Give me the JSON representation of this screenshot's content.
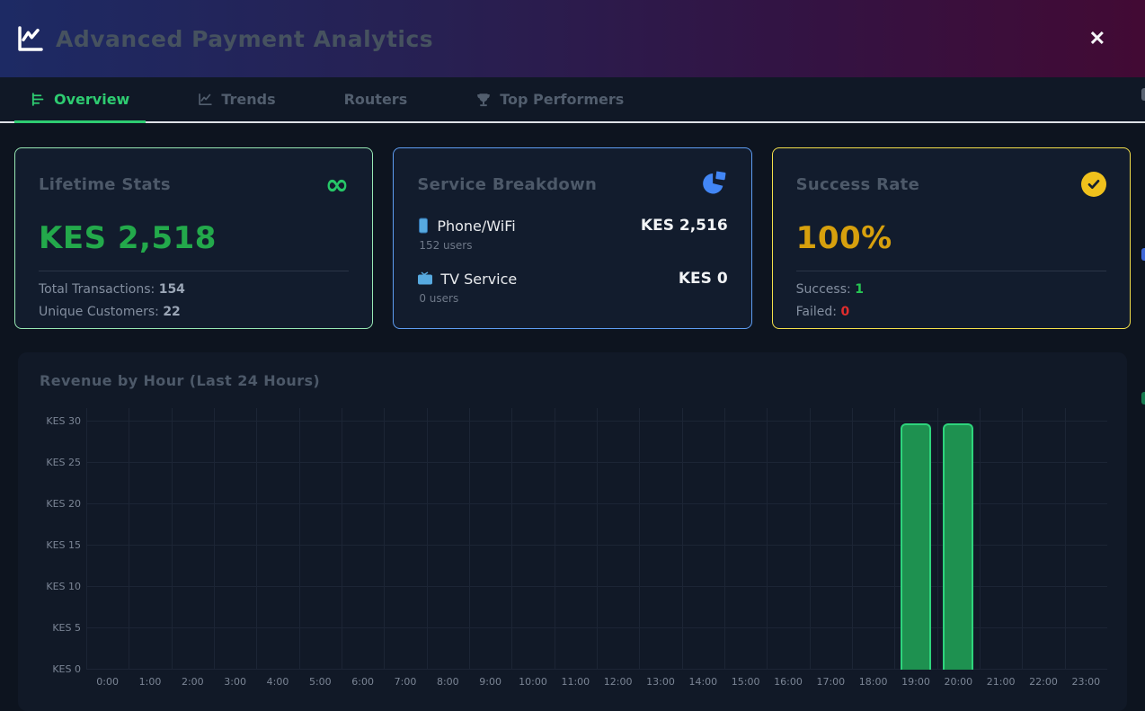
{
  "header": {
    "title": "Advanced Payment Analytics",
    "close_glyph": "✕"
  },
  "tabs": [
    {
      "label": "Overview",
      "icon": "bar-chart-icon",
      "active": true
    },
    {
      "label": "Trends",
      "icon": "line-chart-icon",
      "active": false
    },
    {
      "label": "Routers",
      "icon": "",
      "active": false
    },
    {
      "label": "Top Performers",
      "icon": "trophy-icon",
      "active": false
    }
  ],
  "cards": {
    "lifetime": {
      "title": "Lifetime Stats",
      "icon_glyph": "∞",
      "value": "KES 2,518",
      "rows": [
        {
          "label": "Total Transactions:",
          "value": "154"
        },
        {
          "label": "Unique Customers:",
          "value": "22"
        }
      ]
    },
    "service": {
      "title": "Service Breakdown",
      "icon": "pie-chart-icon",
      "items": [
        {
          "icon": "phone-icon",
          "name": "Phone/WiFi",
          "amount": "KES 2,516",
          "users": "152 users"
        },
        {
          "icon": "tv-icon",
          "name": "TV Service",
          "amount": "KES 0",
          "users": "0 users"
        }
      ]
    },
    "success": {
      "title": "Success Rate",
      "icon": "check-circle-icon",
      "value": "100%",
      "rows": [
        {
          "label": "Success:",
          "value": "1",
          "color": "#27c653"
        },
        {
          "label": "Failed:",
          "value": "0",
          "color": "#e02d2d"
        }
      ]
    }
  },
  "chart_data": {
    "type": "bar",
    "title": "Revenue by Hour (Last 24 Hours)",
    "categories": [
      "0:00",
      "1:00",
      "2:00",
      "3:00",
      "4:00",
      "5:00",
      "6:00",
      "7:00",
      "8:00",
      "9:00",
      "10:00",
      "11:00",
      "12:00",
      "13:00",
      "14:00",
      "15:00",
      "16:00",
      "17:00",
      "18:00",
      "19:00",
      "20:00",
      "21:00",
      "22:00",
      "23:00"
    ],
    "values": [
      0,
      0,
      0,
      0,
      0,
      0,
      0,
      0,
      0,
      0,
      0,
      0,
      0,
      0,
      0,
      0,
      0,
      0,
      0,
      29.8,
      29.8,
      0,
      0,
      0
    ],
    "ytick_prefix": "KES",
    "yticks": [
      0,
      5,
      10,
      15,
      20,
      25,
      30
    ],
    "ylim": [
      0,
      30
    ],
    "grid": true,
    "legend": false,
    "bar_color": "#1e9150",
    "bar_border_color": "#2ed47c"
  },
  "colors": {
    "accent_green": "#2ecc71",
    "value_green": "#23a94b",
    "value_amber": "#d7a00d",
    "value_red": "#e02d2d",
    "icon_blue": "#4286f5",
    "border_green": "#97e8b4",
    "border_blue": "#5e9df2",
    "border_yellow": "#f4e04b"
  }
}
